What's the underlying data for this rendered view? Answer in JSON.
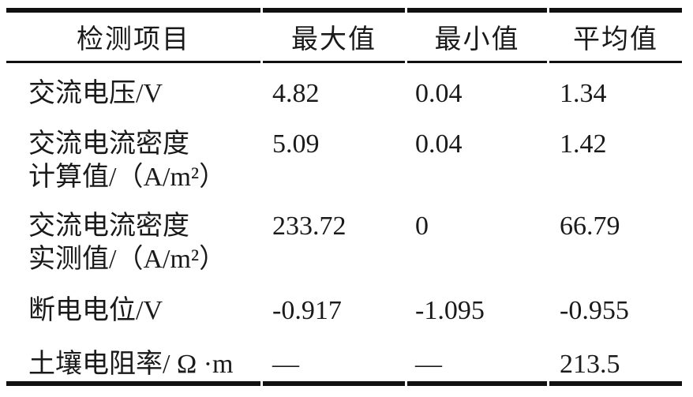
{
  "table": {
    "headers": [
      "检测项目",
      "最大值",
      "最小值",
      "平均值"
    ],
    "rows": [
      {
        "item_lines": [
          "交流电压/V"
        ],
        "max": "4.82",
        "min": "0.04",
        "avg": "1.34"
      },
      {
        "item_lines": [
          "交流电流密度",
          "计算值/（A/m²）"
        ],
        "max": "5.09",
        "min": "0.04",
        "avg": "1.42"
      },
      {
        "item_lines": [
          "交流电流密度",
          "实测值/（A/m²）"
        ],
        "max": "233.72",
        "min": "0",
        "avg": "66.79"
      },
      {
        "item_lines": [
          "断电电位/V"
        ],
        "max": "-0.917",
        "min": "-1.095",
        "avg": "-0.955"
      },
      {
        "item_lines": [
          "土壤电阻率/ Ω ·m"
        ],
        "max": "—",
        "min": "—",
        "avg": "213.5"
      }
    ],
    "colors": {
      "text": "#1a1a1a",
      "rule": "#111111",
      "background": "#ffffff"
    }
  }
}
